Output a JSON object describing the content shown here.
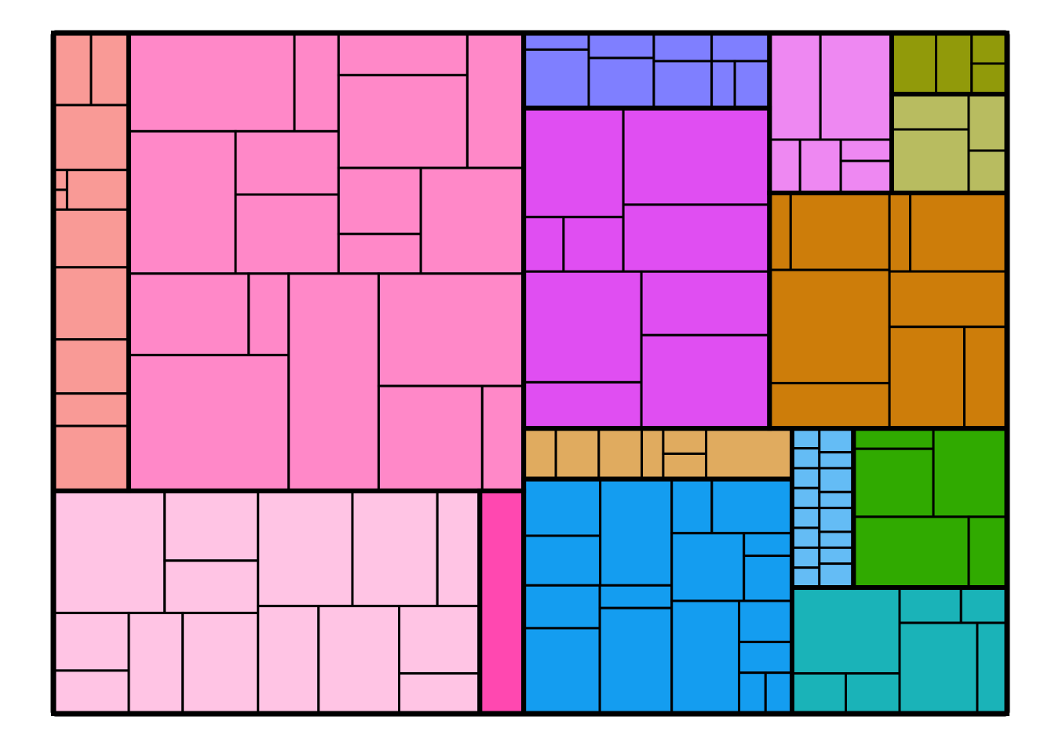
{
  "chart_data": {
    "type": "treemap",
    "series": [
      {
        "color": "#f99a96",
        "values": [
          5,
          5,
          9,
          0.5,
          0.5,
          4.5,
          8,
          10,
          7.5,
          4.5,
          9
        ]
      },
      {
        "color": "#ff88c8",
        "values": [
          30,
          8,
          28,
          12,
          15,
          10,
          22,
          14,
          10,
          6,
          20,
          18,
          6,
          40,
          36,
          30,
          20,
          8
        ]
      },
      {
        "color": "#ffc4e4",
        "values": [
          25,
          12,
          9,
          8,
          6,
          10,
          14,
          20,
          18,
          9,
          12,
          16,
          10,
          6
        ]
      },
      {
        "color": "#ff48b0",
        "values": [
          18
        ]
      },
      {
        "color": "#7f7fff",
        "values": [
          2,
          7,
          3,
          6,
          3,
          5,
          3,
          2,
          3
        ]
      },
      {
        "color": "#e04ef2",
        "values": [
          20,
          4,
          6,
          26,
          18,
          24,
          10,
          15,
          22
        ]
      },
      {
        "color": "#ee88f2",
        "values": [
          10,
          14,
          3,
          4,
          2,
          3
        ]
      },
      {
        "color": "#919a0a",
        "values": [
          5,
          4,
          2,
          2
        ]
      },
      {
        "color": "#b8bc60",
        "values": [
          5,
          9,
          4,
          3
        ]
      },
      {
        "color": "#cd7d0a",
        "values": [
          3,
          14,
          25,
          10,
          3,
          14,
          12,
          14,
          8
        ]
      },
      {
        "color": "#e0ab5f",
        "values": [
          3,
          4,
          4,
          2,
          2,
          2,
          8
        ]
      },
      {
        "color": "#149df0",
        "values": [
          8,
          7,
          14,
          6,
          12,
          3,
          14,
          4,
          8,
          9,
          2,
          4,
          14,
          4,
          3,
          2,
          2
        ]
      },
      {
        "color": "#64bcf5",
        "values": [
          1,
          1,
          1.5,
          1,
          1,
          1,
          1.5,
          1,
          1,
          1,
          1.5,
          1,
          1,
          1,
          1,
          1.5
        ]
      },
      {
        "color": "#30aa00",
        "values": [
          3,
          10,
          12,
          15,
          5
        ]
      },
      {
        "color": "#1ab3b8",
        "values": [
          17,
          4,
          4,
          4,
          3,
          13,
          5
        ]
      }
    ]
  }
}
